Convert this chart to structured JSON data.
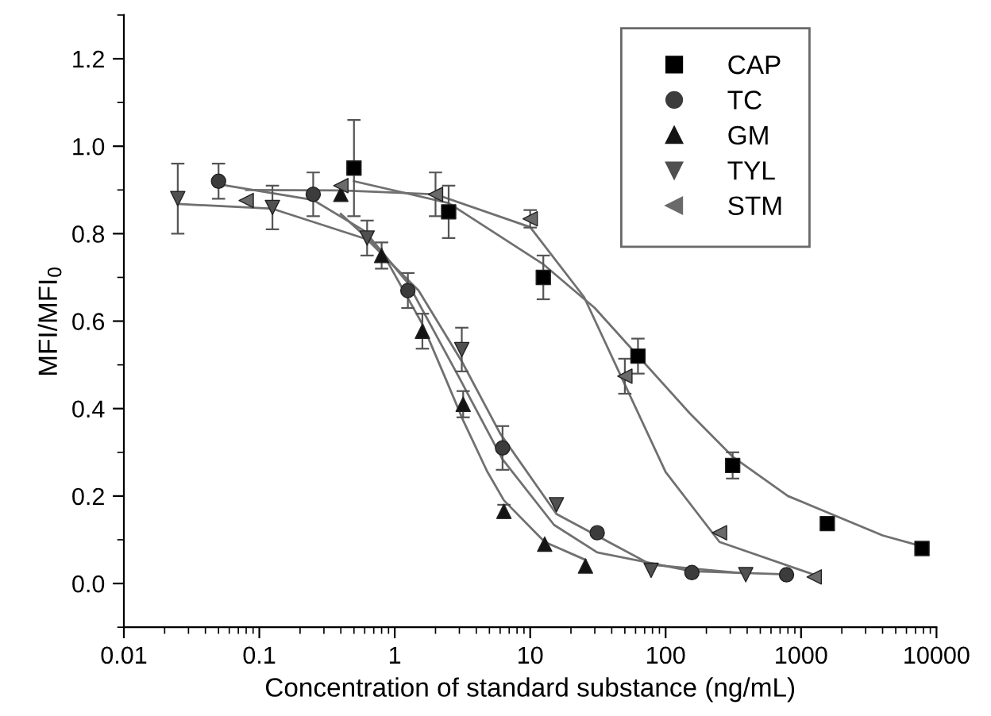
{
  "chart_data": {
    "type": "scatter",
    "xlabel": "Concentration of standard substance (ng/mL)",
    "ylabel": "MFI/MFI$_{0}$",
    "log": "x",
    "xlim": [
      0.01,
      10000
    ],
    "xticks": [
      0.01,
      0.1,
      1,
      10,
      100,
      1000,
      10000
    ],
    "ylim": [
      -0.1,
      1.3
    ],
    "yticks": [
      {
        "value": 0,
        "label": "0.0"
      },
      {
        "value": 0.2,
        "label": "0.2"
      },
      {
        "value": 0.4,
        "label": "0.4"
      },
      {
        "value": 0.6,
        "label": "0.6"
      },
      {
        "value": 0.8,
        "label": "0.8"
      },
      {
        "value": 1.0,
        "label": "1.0"
      },
      {
        "value": 1.2,
        "label": "1.2"
      }
    ],
    "grid": false,
    "legend": "top right",
    "series": [
      {
        "name": "CAP",
        "color": "#000000",
        "marker": "square",
        "x": [
          0.5,
          2.5,
          12.5,
          62.5,
          312.5,
          1562.5,
          7812.5
        ],
        "values": [
          0.95,
          0.85,
          0.7,
          0.52,
          0.27,
          0.137,
          0.08
        ],
        "errors": [
          0.11,
          0.06,
          0.05,
          0.04,
          0.03,
          null,
          null
        ]
      },
      {
        "name": "TC",
        "color": "#3c3c3c",
        "marker": "circle",
        "x": [
          0.05,
          0.25,
          1.25,
          6.25,
          31.25,
          156.25,
          781.25
        ],
        "values": [
          0.92,
          0.89,
          0.67,
          0.31,
          0.116,
          0.025,
          0.02
        ],
        "errors": [
          0.04,
          0.05,
          0.04,
          0.05,
          null,
          null,
          null
        ]
      },
      {
        "name": "GM",
        "color": "#141414",
        "marker": "triangle",
        "x": [
          0.4,
          0.8,
          1.6,
          3.2,
          6.4,
          12.8,
          25.6
        ],
        "values": [
          0.89,
          0.75,
          0.577,
          0.41,
          0.165,
          0.09,
          0.04
        ],
        "errors": [
          null,
          0.03,
          0.04,
          0.03,
          0.015,
          null,
          null
        ]
      },
      {
        "name": "TYL",
        "color": "#505050",
        "marker": "triangle-down",
        "x": [
          0.025,
          0.125,
          0.625,
          3.125,
          15.625,
          78.125,
          390.625
        ],
        "values": [
          0.88,
          0.86,
          0.79,
          0.535,
          0.18,
          0.03,
          0.02
        ],
        "errors": [
          0.08,
          0.05,
          0.04,
          0.05,
          null,
          null,
          null
        ]
      },
      {
        "name": "STM",
        "color": "#6a6a6a",
        "marker": "triangle-left",
        "x": [
          0.08,
          0.4,
          2,
          10,
          50,
          250,
          1250
        ],
        "values": [
          0.876,
          0.91,
          0.89,
          0.834,
          0.474,
          0.116,
          0.015
        ],
        "errors": [
          null,
          null,
          0.05,
          0.02,
          0.04,
          null,
          null
        ]
      },
      {
        "type": "line",
        "color": "#707070",
        "x": [
          0.5,
          2.5,
          12.5,
          30,
          150,
          312.5,
          800,
          4000,
          7812.5
        ],
        "values": [
          0.92,
          0.87,
          0.73,
          0.63,
          0.39,
          0.29,
          0.2,
          0.11,
          0.085
        ]
      },
      {
        "type": "line",
        "color": "#707070",
        "x": [
          0.05,
          0.25,
          0.6,
          1.25,
          3,
          6.25,
          15,
          31.25,
          156.25,
          781.25
        ],
        "values": [
          0.913,
          0.877,
          0.806,
          0.687,
          0.47,
          0.284,
          0.134,
          0.071,
          0.028,
          0.021
        ]
      },
      {
        "type": "line",
        "color": "#707070",
        "x": [
          0.4,
          0.8,
          1.6,
          2.4,
          3.2,
          4.8,
          6.4,
          12.8,
          25.6
        ],
        "values": [
          0.845,
          0.76,
          0.593,
          0.465,
          0.373,
          0.257,
          0.19,
          0.095,
          0.054
        ]
      },
      {
        "type": "line",
        "color": "#707070",
        "x": [
          0.025,
          0.125,
          0.625,
          1.5,
          3.125,
          6,
          15.625,
          78.125,
          390.625
        ],
        "values": [
          0.868,
          0.857,
          0.787,
          0.67,
          0.508,
          0.343,
          0.159,
          0.043,
          0.023
        ]
      },
      {
        "type": "line",
        "color": "#707070",
        "x": [
          0.08,
          0.4,
          2,
          10,
          25,
          50,
          100,
          250,
          1250
        ],
        "values": [
          0.9,
          0.899,
          0.89,
          0.815,
          0.655,
          0.455,
          0.255,
          0.095,
          0.02
        ]
      }
    ]
  }
}
